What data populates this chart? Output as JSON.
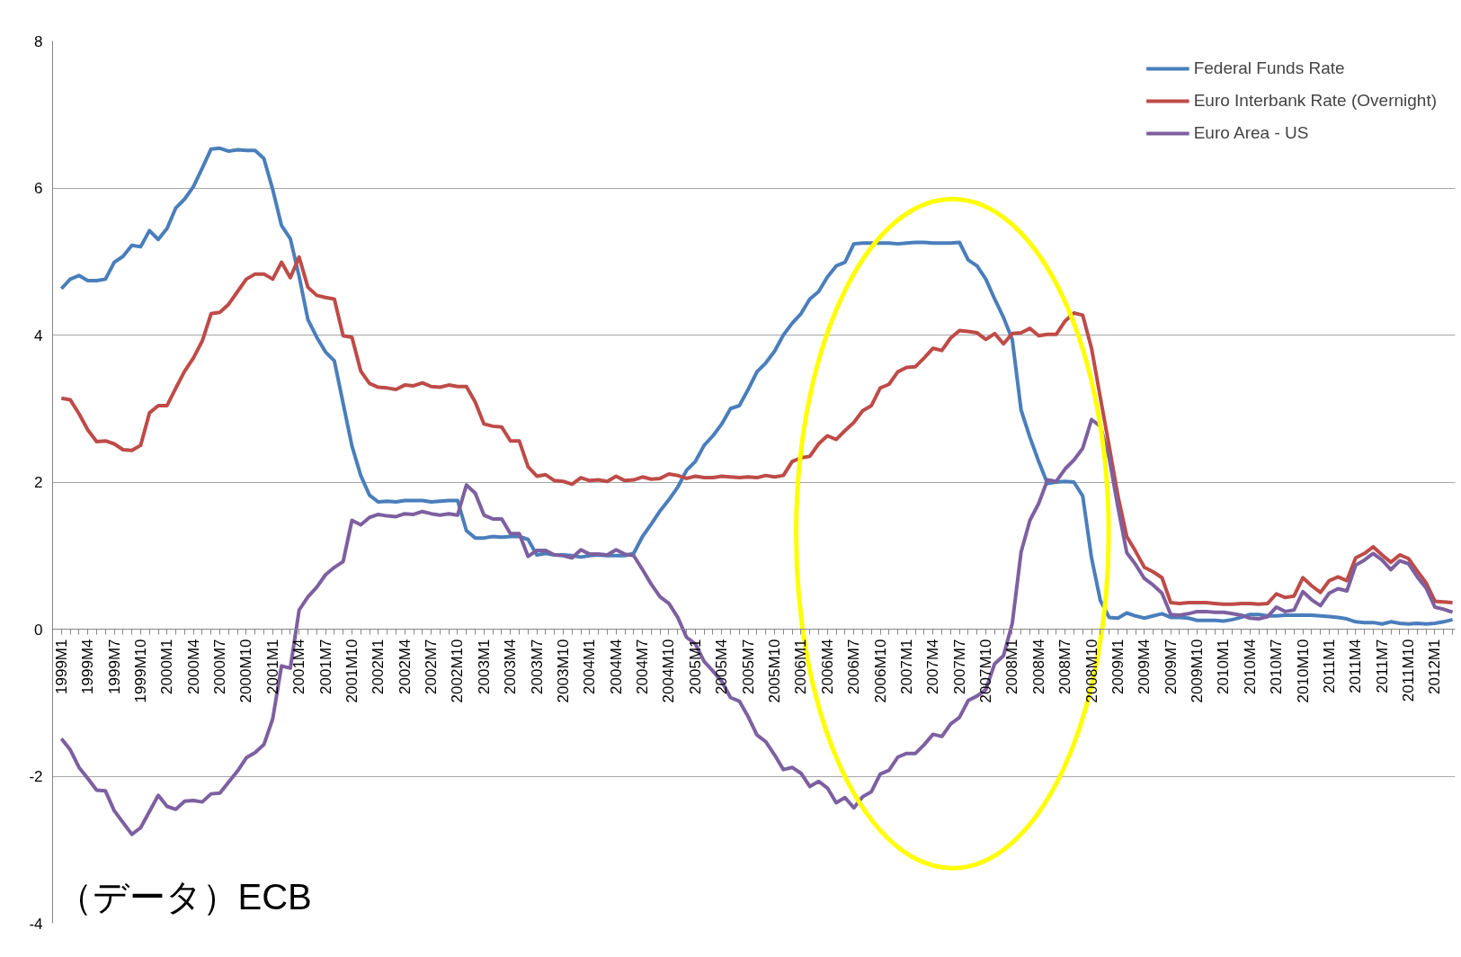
{
  "chart_data": {
    "type": "line",
    "categories": [
      "1999M1",
      null,
      null,
      "1999M4",
      null,
      null,
      "1999M7",
      null,
      null,
      "1999M10",
      null,
      null,
      "2000M1",
      null,
      null,
      "2000M4",
      null,
      null,
      "2000M7",
      null,
      null,
      "2000M10",
      null,
      null,
      "2001M1",
      null,
      null,
      "2001M4",
      null,
      null,
      "2001M7",
      null,
      null,
      "2001M10",
      null,
      null,
      "2002M1",
      null,
      null,
      "2002M4",
      null,
      null,
      "2002M7",
      null,
      null,
      "2002M10",
      null,
      null,
      "2003M1",
      null,
      null,
      "2003M4",
      null,
      null,
      "2003M7",
      null,
      null,
      "2003M10",
      null,
      null,
      "2004M1",
      null,
      null,
      "2004M4",
      null,
      null,
      "2004M7",
      null,
      null,
      "2004M10",
      null,
      null,
      "2005M1",
      null,
      null,
      "2005M4",
      null,
      null,
      "2005M7",
      null,
      null,
      "2005M10",
      null,
      null,
      "2006M1",
      null,
      null,
      "2006M4",
      null,
      null,
      "2006M7",
      null,
      null,
      "2006M10",
      null,
      null,
      "2007M1",
      null,
      null,
      "2007M4",
      null,
      null,
      "2007M7",
      null,
      null,
      "2007M10",
      null,
      null,
      "2008M1",
      null,
      null,
      "2008M4",
      null,
      null,
      "2008M7",
      null,
      null,
      "2008M10",
      null,
      null,
      "2009M1",
      null,
      null,
      "2009M4",
      null,
      null,
      "2009M7",
      null,
      null,
      "2009M10",
      null,
      null,
      "2010M1",
      null,
      null,
      "2010M4",
      null,
      null,
      "2010M7",
      null,
      null,
      "2010M10",
      null,
      null,
      "2011M1",
      null,
      null,
      "2011M4",
      null,
      null,
      "2011M7",
      null,
      null,
      "2011M10",
      null,
      null,
      "2012M1",
      null,
      null
    ],
    "series": [
      {
        "name": "Federal Funds Rate",
        "color": "#4a7ebb",
        "values": [
          4.63,
          4.76,
          4.81,
          4.74,
          4.74,
          4.76,
          4.99,
          5.07,
          5.22,
          5.2,
          5.42,
          5.3,
          5.45,
          5.73,
          5.85,
          6.02,
          6.27,
          6.53,
          6.54,
          6.5,
          6.52,
          6.51,
          6.51,
          6.4,
          5.98,
          5.49,
          5.31,
          4.8,
          4.21,
          3.97,
          3.77,
          3.65,
          3.07,
          2.49,
          2.09,
          1.82,
          1.73,
          1.74,
          1.73,
          1.75,
          1.75,
          1.75,
          1.73,
          1.74,
          1.75,
          1.75,
          1.34,
          1.24,
          1.24,
          1.26,
          1.25,
          1.26,
          1.26,
          1.22,
          1.01,
          1.03,
          1.01,
          1.01,
          1.0,
          0.98,
          1.0,
          1.01,
          1.0,
          1.0,
          1.0,
          1.03,
          1.26,
          1.43,
          1.61,
          1.76,
          1.93,
          2.16,
          2.28,
          2.5,
          2.63,
          2.79,
          3.0,
          3.04,
          3.26,
          3.5,
          3.62,
          3.78,
          4.0,
          4.16,
          4.29,
          4.49,
          4.59,
          4.79,
          4.94,
          4.99,
          5.24,
          5.25,
          5.25,
          5.25,
          5.25,
          5.24,
          5.25,
          5.26,
          5.26,
          5.25,
          5.25,
          5.25,
          5.26,
          5.02,
          4.94,
          4.76,
          4.49,
          4.24,
          3.94,
          2.98,
          2.61,
          2.28,
          1.98,
          2.0,
          2.01,
          2.0,
          1.81,
          0.97,
          0.39,
          0.16,
          0.15,
          0.22,
          0.18,
          0.15,
          0.18,
          0.21,
          0.16,
          0.16,
          0.15,
          0.12,
          0.12,
          0.12,
          0.11,
          0.13,
          0.16,
          0.2,
          0.2,
          0.18,
          0.18,
          0.19,
          0.19,
          0.19,
          0.19,
          0.18,
          0.17,
          0.16,
          0.14,
          0.1,
          0.09,
          0.09,
          0.07,
          0.1,
          0.08,
          0.07,
          0.08,
          0.07,
          0.08,
          0.1,
          0.13
        ]
      },
      {
        "name": "Euro Interbank Rate (Overnight)",
        "color": "#be4b48",
        "values": [
          3.14,
          3.12,
          2.93,
          2.71,
          2.55,
          2.56,
          2.52,
          2.44,
          2.43,
          2.5,
          2.94,
          3.04,
          3.04,
          3.28,
          3.51,
          3.69,
          3.92,
          4.29,
          4.31,
          4.42,
          4.59,
          4.76,
          4.83,
          4.83,
          4.76,
          4.99,
          4.78,
          5.06,
          4.65,
          4.54,
          4.51,
          4.49,
          3.99,
          3.97,
          3.51,
          3.34,
          3.29,
          3.28,
          3.26,
          3.32,
          3.31,
          3.35,
          3.3,
          3.29,
          3.32,
          3.3,
          3.3,
          3.09,
          2.79,
          2.76,
          2.75,
          2.56,
          2.56,
          2.21,
          2.08,
          2.1,
          2.02,
          2.01,
          1.97,
          2.06,
          2.02,
          2.03,
          2.01,
          2.08,
          2.02,
          2.03,
          2.07,
          2.04,
          2.05,
          2.11,
          2.09,
          2.05,
          2.08,
          2.06,
          2.06,
          2.08,
          2.07,
          2.06,
          2.07,
          2.06,
          2.09,
          2.07,
          2.09,
          2.28,
          2.33,
          2.35,
          2.52,
          2.63,
          2.58,
          2.7,
          2.81,
          2.97,
          3.04,
          3.28,
          3.33,
          3.5,
          3.56,
          3.57,
          3.69,
          3.82,
          3.79,
          3.96,
          4.06,
          4.05,
          4.03,
          3.94,
          4.02,
          3.88,
          4.02,
          4.03,
          4.09,
          3.99,
          4.01,
          4.01,
          4.19,
          4.3,
          4.27,
          3.82,
          3.15,
          2.49,
          1.81,
          1.26,
          1.06,
          0.84,
          0.78,
          0.7,
          0.36,
          0.35,
          0.36,
          0.36,
          0.36,
          0.35,
          0.34,
          0.34,
          0.35,
          0.35,
          0.34,
          0.35,
          0.48,
          0.43,
          0.45,
          0.7,
          0.59,
          0.5,
          0.66,
          0.71,
          0.66,
          0.97,
          1.03,
          1.12,
          1.01,
          0.91,
          1.01,
          0.96,
          0.79,
          0.63,
          0.38,
          0.37,
          0.36
        ]
      },
      {
        "name": "Euro Area - US",
        "color": "#7d60a0",
        "values": [
          -1.49,
          -1.64,
          -1.88,
          -2.03,
          -2.19,
          -2.2,
          -2.47,
          -2.63,
          -2.79,
          -2.7,
          -2.48,
          -2.26,
          -2.41,
          -2.45,
          -2.34,
          -2.33,
          -2.35,
          -2.24,
          -2.23,
          -2.08,
          -1.93,
          -1.75,
          -1.68,
          -1.57,
          -1.22,
          -0.5,
          -0.53,
          0.26,
          0.44,
          0.57,
          0.74,
          0.84,
          0.92,
          1.48,
          1.42,
          1.52,
          1.56,
          1.54,
          1.53,
          1.57,
          1.56,
          1.6,
          1.57,
          1.55,
          1.57,
          1.55,
          1.96,
          1.85,
          1.55,
          1.5,
          1.5,
          1.3,
          1.3,
          0.99,
          1.07,
          1.07,
          1.01,
          1.0,
          0.97,
          1.08,
          1.02,
          1.02,
          1.01,
          1.08,
          1.02,
          1.0,
          0.81,
          0.61,
          0.44,
          0.35,
          0.16,
          -0.11,
          -0.2,
          -0.44,
          -0.57,
          -0.71,
          -0.93,
          -0.98,
          -1.19,
          -1.44,
          -1.53,
          -1.71,
          -1.91,
          -1.88,
          -1.96,
          -2.14,
          -2.07,
          -2.16,
          -2.36,
          -2.29,
          -2.43,
          -2.28,
          -2.21,
          -1.97,
          -1.92,
          -1.74,
          -1.69,
          -1.69,
          -1.57,
          -1.43,
          -1.46,
          -1.29,
          -1.2,
          -0.97,
          -0.91,
          -0.82,
          -0.47,
          -0.36,
          0.08,
          1.05,
          1.48,
          1.71,
          2.03,
          2.01,
          2.18,
          2.3,
          2.46,
          2.85,
          2.76,
          2.33,
          1.66,
          1.04,
          0.88,
          0.69,
          0.6,
          0.49,
          0.2,
          0.19,
          0.21,
          0.24,
          0.24,
          0.23,
          0.23,
          0.21,
          0.19,
          0.15,
          0.14,
          0.17,
          0.3,
          0.24,
          0.26,
          0.51,
          0.4,
          0.32,
          0.49,
          0.55,
          0.52,
          0.87,
          0.94,
          1.03,
          0.94,
          0.81,
          0.93,
          0.89,
          0.71,
          0.56,
          0.3,
          0.27,
          0.23
        ]
      }
    ],
    "ylim": [
      -4,
      8
    ],
    "yticks": [
      -4,
      -2,
      0,
      2,
      4,
      6,
      8
    ],
    "grid": "y",
    "legend": "top right",
    "marker": "none",
    "line_style": "solid",
    "annotations": [
      "（データ）ECB"
    ]
  }
}
